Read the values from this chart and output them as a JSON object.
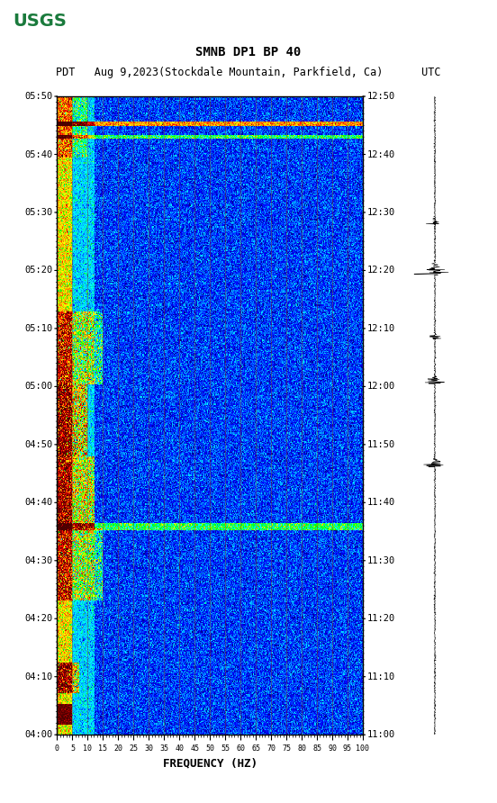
{
  "title_line1": "SMNB DP1 BP 40",
  "title_line2": "PDT   Aug 9,2023(Stockdale Mountain, Parkfield, Ca)      UTC",
  "xlabel": "FREQUENCY (HZ)",
  "freq_ticks": [
    0,
    5,
    10,
    15,
    20,
    25,
    30,
    35,
    40,
    45,
    50,
    55,
    60,
    65,
    70,
    75,
    80,
    85,
    90,
    95,
    100
  ],
  "left_time_labels": [
    "04:00",
    "04:10",
    "04:20",
    "04:30",
    "04:40",
    "04:50",
    "05:00",
    "05:10",
    "05:20",
    "05:30",
    "05:40",
    "05:50"
  ],
  "right_time_labels": [
    "11:00",
    "11:10",
    "11:20",
    "11:30",
    "11:40",
    "11:50",
    "12:00",
    "12:10",
    "12:20",
    "12:30",
    "12:40",
    "12:50"
  ],
  "freq_min": 0,
  "freq_max": 100,
  "n_time": 620,
  "n_freq": 400,
  "background_color": "#ffffff",
  "fig_width": 5.52,
  "fig_height": 8.92,
  "dpi": 100,
  "usgs_logo_color": "#1a7a3c",
  "vertical_line_freqs": [
    5,
    10,
    15,
    20,
    25,
    30,
    35,
    40,
    45,
    50,
    55,
    60,
    65,
    70,
    75,
    80,
    85,
    90,
    95,
    100
  ],
  "vertical_line_color": "#8B4513",
  "noise_floor_db": -20,
  "signal_db": 40,
  "artifact_horizontal_band_time": 0.16,
  "artifact_horizontal_band2_time": 0.28
}
